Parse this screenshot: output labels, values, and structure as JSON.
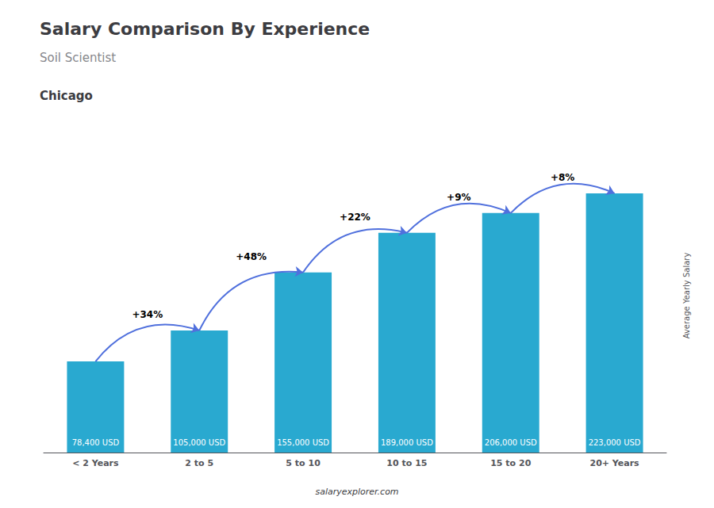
{
  "chart_data": {
    "type": "bar",
    "title": "Salary Comparison By Experience",
    "subtitle": "Soil Scientist",
    "city": "Chicago",
    "ylabel": "Average Yearly Salary",
    "footer": "salaryexplorer.com",
    "categories": [
      "< 2 Years",
      "2 to 5",
      "5 to 10",
      "10 to 15",
      "15 to 20",
      "20+ Years"
    ],
    "values": [
      78400,
      105000,
      155000,
      189000,
      206000,
      223000
    ],
    "value_labels": [
      "78,400 USD",
      "105,000 USD",
      "155,000 USD",
      "189,000 USD",
      "206,000 USD",
      "223,000 USD"
    ],
    "data_labels": true,
    "annotations": [
      "+34%",
      "+48%",
      "+22%",
      "+9%",
      "+8%"
    ],
    "color": "#29a9d0",
    "ylim": [
      0,
      270000
    ],
    "tick_labels": "x",
    "grid": false
  }
}
